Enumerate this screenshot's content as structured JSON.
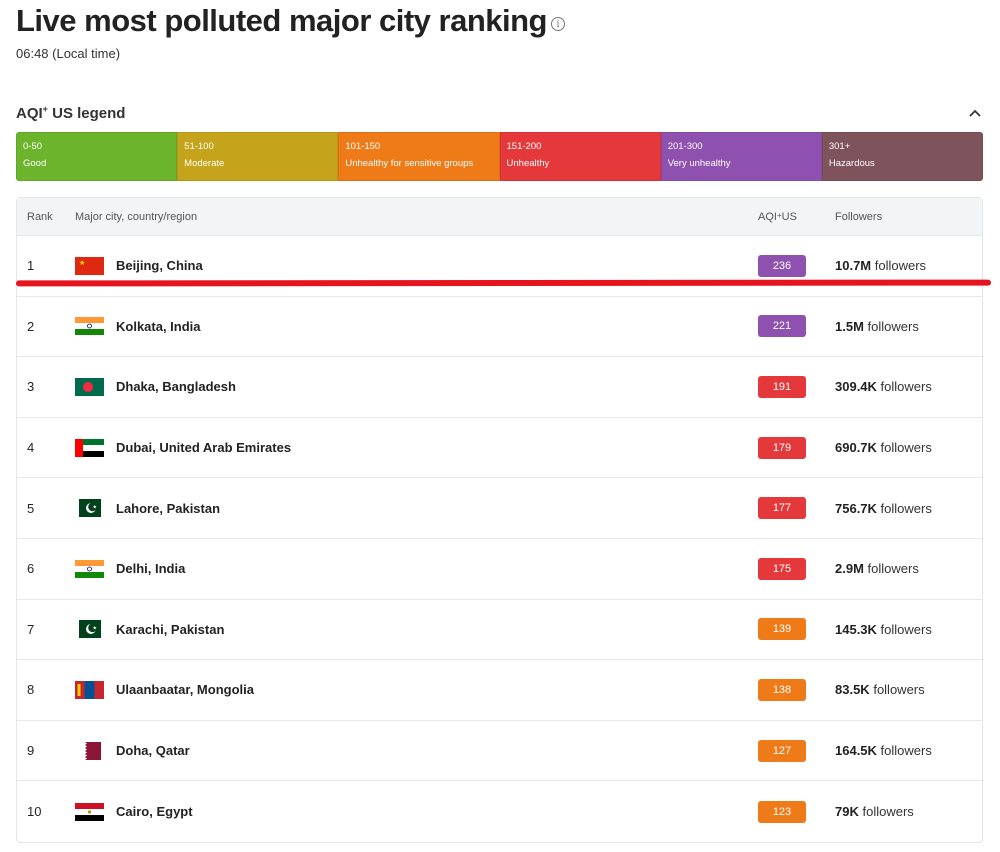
{
  "header": {
    "title": "Live most polluted major city ranking",
    "info_icon": "i",
    "local_time": "06:48 (Local time)"
  },
  "legend": {
    "title": "AQI+ US legend",
    "title_main": "AQI",
    "title_sup": "+",
    "title_rest": " US legend",
    "segments": [
      {
        "range": "0-50",
        "label": "Good",
        "color": "#6db42d"
      },
      {
        "range": "51-100",
        "label": "Moderate",
        "color": "#c5a31a"
      },
      {
        "range": "101-150",
        "label": "Unhealthy for sensitive groups",
        "color": "#ee7a18"
      },
      {
        "range": "151-200",
        "label": "Unhealthy",
        "color": "#e5383b"
      },
      {
        "range": "201-300",
        "label": "Very unhealthy",
        "color": "#8e51b0"
      },
      {
        "range": "301+",
        "label": "Hazardous",
        "color": "#7f535c"
      }
    ]
  },
  "table": {
    "headers": {
      "rank": "Rank",
      "city": "Major city, country/region",
      "aqi_main": "AQI",
      "aqi_sup": "+",
      "aqi_rest": " US",
      "followers": "Followers"
    },
    "rows": [
      {
        "rank": "1",
        "city": "Beijing, China",
        "flag": "china-flag",
        "aqi": "236",
        "aqi_color": "#8e51b0",
        "followers_num": "10.7M",
        "followers_word": "followers"
      },
      {
        "rank": "2",
        "city": "Kolkata, India",
        "flag": "india-flag",
        "aqi": "221",
        "aqi_color": "#8e51b0",
        "followers_num": "1.5M",
        "followers_word": "followers"
      },
      {
        "rank": "3",
        "city": "Dhaka, Bangladesh",
        "flag": "bangladesh-flag",
        "aqi": "191",
        "aqi_color": "#e5383b",
        "followers_num": "309.4K",
        "followers_word": "followers"
      },
      {
        "rank": "4",
        "city": "Dubai, United Arab Emirates",
        "flag": "uae-flag",
        "aqi": "179",
        "aqi_color": "#e5383b",
        "followers_num": "690.7K",
        "followers_word": "followers"
      },
      {
        "rank": "5",
        "city": "Lahore, Pakistan",
        "flag": "pakistan-flag",
        "aqi": "177",
        "aqi_color": "#e5383b",
        "followers_num": "756.7K",
        "followers_word": "followers"
      },
      {
        "rank": "6",
        "city": "Delhi, India",
        "flag": "india-flag",
        "aqi": "175",
        "aqi_color": "#e5383b",
        "followers_num": "2.9M",
        "followers_word": "followers"
      },
      {
        "rank": "7",
        "city": "Karachi, Pakistan",
        "flag": "pakistan-flag",
        "aqi": "139",
        "aqi_color": "#ee7a18",
        "followers_num": "145.3K",
        "followers_word": "followers"
      },
      {
        "rank": "8",
        "city": "Ulaanbaatar, Mongolia",
        "flag": "mongolia-flag",
        "aqi": "138",
        "aqi_color": "#ee7a18",
        "followers_num": "83.5K",
        "followers_word": "followers"
      },
      {
        "rank": "9",
        "city": "Doha, Qatar",
        "flag": "qatar-flag",
        "aqi": "127",
        "aqi_color": "#ee7a18",
        "followers_num": "164.5K",
        "followers_word": "followers"
      },
      {
        "rank": "10",
        "city": "Cairo, Egypt",
        "flag": "egypt-flag",
        "aqi": "123",
        "aqi_color": "#ee7a18",
        "followers_num": "79K",
        "followers_word": "followers"
      }
    ]
  },
  "annotation": {
    "color": "#e5141f"
  }
}
